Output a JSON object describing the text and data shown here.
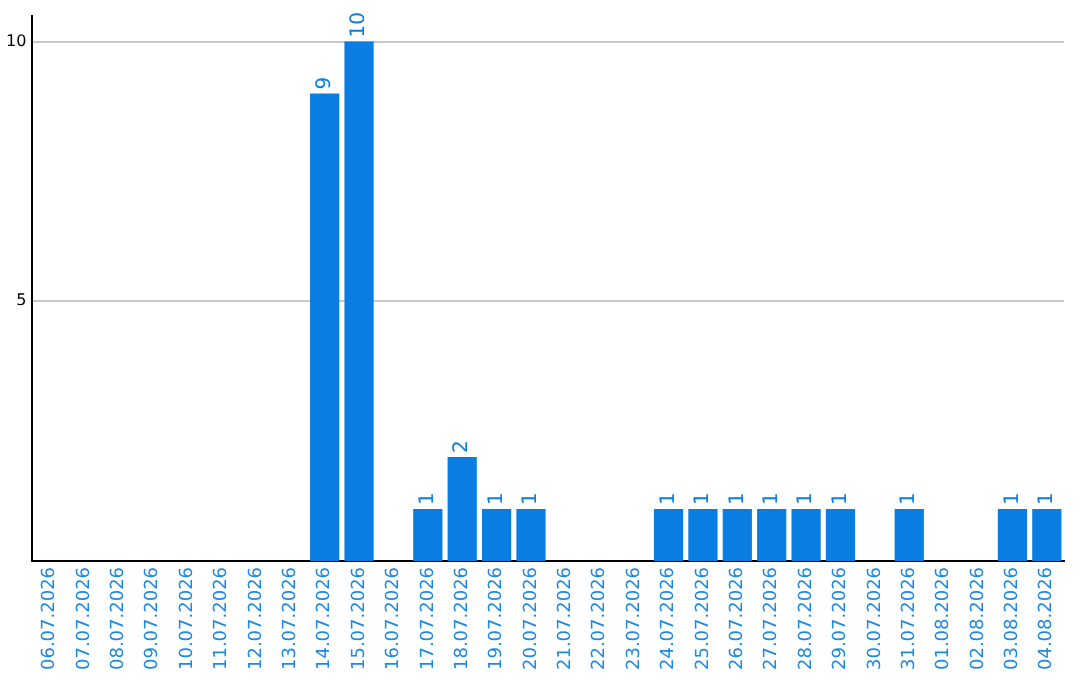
{
  "chart_data": {
    "type": "bar",
    "categories": [
      "06.07.2026",
      "07.07.2026",
      "08.07.2026",
      "09.07.2026",
      "10.07.2026",
      "11.07.2026",
      "12.07.2026",
      "13.07.2026",
      "14.07.2026",
      "15.07.2026",
      "16.07.2026",
      "17.07.2026",
      "18.07.2026",
      "19.07.2026",
      "20.07.2026",
      "21.07.2026",
      "22.07.2026",
      "23.07.2026",
      "24.07.2026",
      "25.07.2026",
      "26.07.2026",
      "27.07.2026",
      "28.07.2026",
      "29.07.2026",
      "30.07.2026",
      "31.07.2026",
      "01.08.2026",
      "02.08.2026",
      "03.08.2026",
      "04.08.2026"
    ],
    "values": [
      0,
      0,
      0,
      0,
      0,
      0,
      0,
      0,
      9,
      10,
      0,
      1,
      2,
      1,
      1,
      0,
      0,
      0,
      1,
      1,
      1,
      1,
      1,
      1,
      0,
      1,
      0,
      0,
      1,
      1
    ],
    "value_labels": [
      null,
      null,
      null,
      null,
      null,
      null,
      null,
      null,
      "9",
      "10",
      null,
      "1",
      "2",
      "1",
      "1",
      null,
      null,
      null,
      "1",
      "1",
      "1",
      "1",
      "1",
      "1",
      null,
      "1",
      null,
      null,
      "1",
      "1"
    ],
    "color": "#0a7de2",
    "ylim": [
      0,
      10.5
    ],
    "yticks": [
      5,
      10
    ],
    "grid": "y",
    "legend": false
  }
}
